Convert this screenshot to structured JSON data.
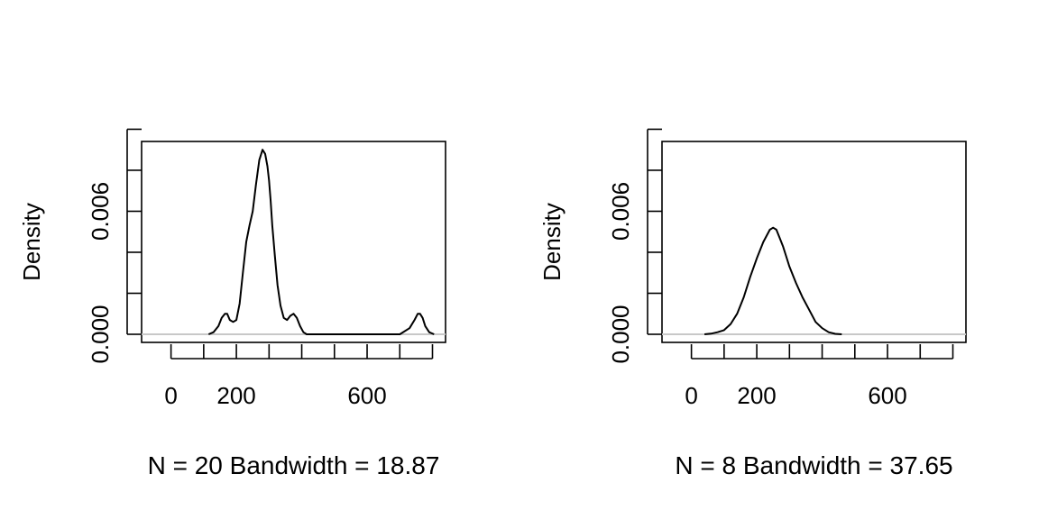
{
  "chart_data": [
    {
      "type": "line",
      "title": "",
      "xlabel": "N = 20   Bandwidth = 18.87",
      "ylabel": "Density",
      "xlim": [
        -90,
        840
      ],
      "ylim": [
        0,
        0.0098
      ],
      "x_ticks": [
        0,
        100,
        200,
        300,
        400,
        500,
        600,
        700,
        800
      ],
      "x_tick_labels": [
        "0",
        "",
        "200",
        "",
        "",
        "",
        "600",
        "",
        ""
      ],
      "y_ticks": [
        0,
        0.002,
        0.004,
        0.006,
        0.008,
        0.01
      ],
      "y_tick_labels": [
        "0.000",
        "",
        "",
        "0.006",
        "",
        ""
      ],
      "baseline_color": "#c8c8c8",
      "series": [
        {
          "x": [
            115,
            130,
            145,
            155,
            165,
            172,
            180,
            190,
            200,
            210,
            220,
            230,
            240,
            250,
            260,
            270,
            280,
            288,
            295,
            300,
            305,
            310,
            318,
            326,
            335,
            345,
            355,
            365,
            375,
            385,
            395,
            405,
            415,
            425,
            435,
            445,
            460,
            480,
            520,
            600,
            700,
            730,
            745,
            755,
            762,
            770,
            778,
            790,
            805
          ],
          "y": [
            0.0,
            0.0001,
            0.0004,
            0.0008,
            0.001,
            0.001,
            0.0007,
            0.0006,
            0.0007,
            0.0015,
            0.003,
            0.0045,
            0.0053,
            0.006,
            0.0073,
            0.0085,
            0.009,
            0.0088,
            0.0082,
            0.0075,
            0.0065,
            0.0053,
            0.0038,
            0.0024,
            0.0014,
            0.0008,
            0.0007,
            0.0009,
            0.001,
            0.0008,
            0.0004,
            0.0001,
            0.0,
            0.0,
            0.0,
            0.0,
            0.0,
            0.0,
            0.0,
            0.0,
            0.0,
            0.0003,
            0.0007,
            0.001,
            0.001,
            0.0008,
            0.0004,
            0.0001,
            0.0
          ]
        }
      ]
    },
    {
      "type": "line",
      "title": "",
      "xlabel": "N = 8   Bandwidth = 37.65",
      "ylabel": "Density",
      "xlim": [
        -90,
        840
      ],
      "ylim": [
        0,
        0.0098
      ],
      "x_ticks": [
        0,
        100,
        200,
        300,
        400,
        500,
        600,
        700,
        800
      ],
      "x_tick_labels": [
        "0",
        "",
        "200",
        "",
        "",
        "",
        "600",
        "",
        ""
      ],
      "y_ticks": [
        0,
        0.002,
        0.004,
        0.006,
        0.008,
        0.01
      ],
      "y_tick_labels": [
        "0.000",
        "",
        "",
        "0.006",
        "",
        ""
      ],
      "baseline_color": "#c8c8c8",
      "series": [
        {
          "x": [
            40,
            60,
            80,
            100,
            120,
            140,
            160,
            180,
            200,
            220,
            240,
            250,
            260,
            270,
            280,
            290,
            300,
            320,
            340,
            360,
            380,
            400,
            420,
            440,
            460
          ],
          "y": [
            0.0,
            3e-05,
            0.0001,
            0.0002,
            0.0005,
            0.001,
            0.0018,
            0.0028,
            0.0037,
            0.0045,
            0.0051,
            0.0052,
            0.0051,
            0.0047,
            0.0043,
            0.0038,
            0.0033,
            0.0025,
            0.0018,
            0.0012,
            0.0006,
            0.0003,
            0.0001,
            2e-05,
            0.0
          ]
        }
      ]
    }
  ]
}
